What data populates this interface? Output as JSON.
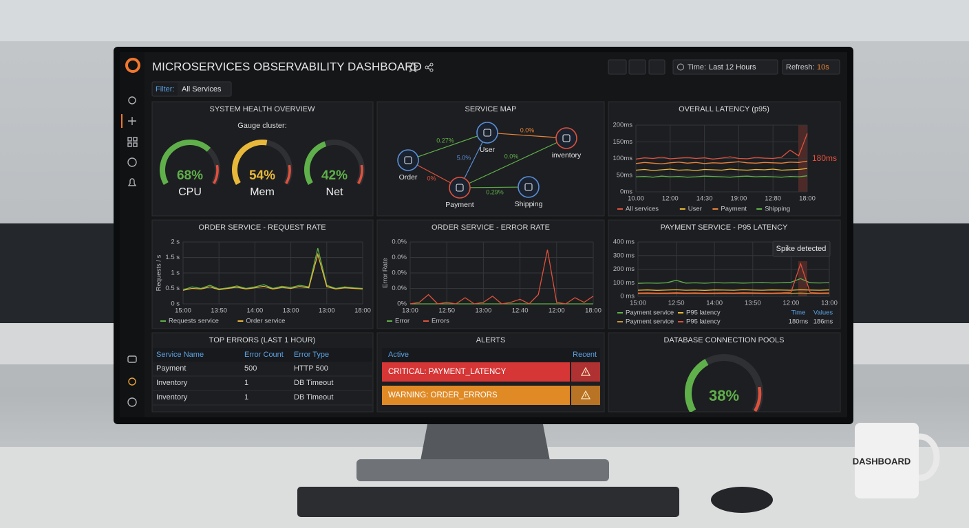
{
  "header": {
    "title": "MICROSERVICES OBSERVABILITY DASHBOARD",
    "time_label": "Time:",
    "time_value": "Last 12 Hours",
    "refresh_label": "Refresh:",
    "refresh_value": "10s"
  },
  "filter": {
    "label": "Filter:",
    "value": "All Services"
  },
  "health": {
    "title": "SYSTEM HEALTH OVERVIEW",
    "subtitle": "Gauge cluster:",
    "labels": [
      "CPU",
      "Mem",
      "Net"
    ],
    "values": [
      68,
      54,
      42
    ],
    "value_labels": [
      "68%",
      "54%",
      "42%"
    ],
    "colors": [
      "#5fb04a",
      "#e8b83a",
      "#5fb04a"
    ]
  },
  "service_map": {
    "title": "SERVICE MAP",
    "nodes": [
      {
        "label": "Order",
        "color": "#5b8fd6"
      },
      {
        "label": "User",
        "color": "#5b8fd6"
      },
      {
        "label": "inventory",
        "color": "#e0513c"
      },
      {
        "label": "Payment",
        "color": "#e0513c"
      },
      {
        "label": "Shipping",
        "color": "#5b8fd6"
      }
    ],
    "edges": [
      {
        "label": "0.27%",
        "color": "#5fb04a"
      },
      {
        "label": "0.0%",
        "color": "#e8843a"
      },
      {
        "label": "5.0%",
        "color": "#5b8fd6"
      },
      {
        "label": "0.0%",
        "color": "#5fb04a"
      },
      {
        "label": "0%",
        "color": "#e0513c"
      },
      {
        "label": "0.29%",
        "color": "#5fb04a"
      }
    ]
  },
  "chart_data": [
    {
      "type": "line",
      "title": "OVERALL LATENCY (p95)",
      "annotation": "180ms",
      "categories": [
        "10.00",
        null,
        null,
        null,
        "12:00",
        null,
        null,
        null,
        "14:30",
        null,
        null,
        null,
        "19:00",
        null,
        null,
        null,
        "12:80",
        null,
        null,
        null,
        "18:00"
      ],
      "ylim": [
        0,
        200
      ],
      "yticks": [
        {
          "value": 0,
          "label": "0ms"
        },
        {
          "value": 50,
          "label": "50ms"
        },
        {
          "value": 100,
          "label": "100ms"
        },
        {
          "value": 150,
          "label": "150ms"
        },
        {
          "value": 200,
          "label": "200ms"
        }
      ],
      "grid": true,
      "series": [
        {
          "name": "All services",
          "color": "#e0513c",
          "values": [
            98,
            102,
            100,
            104,
            99,
            101,
            103,
            100,
            102,
            98,
            101,
            105,
            100,
            99,
            103,
            101,
            100,
            104,
            125,
            108,
            175
          ]
        },
        {
          "name": "User",
          "color": "#e8b83a",
          "values": [
            65,
            67,
            64,
            66,
            68,
            65,
            66,
            64,
            67,
            66,
            65,
            68,
            66,
            65,
            67,
            66,
            68,
            65,
            66,
            67,
            70
          ]
        },
        {
          "name": "Payment",
          "color": "#e8843a",
          "values": [
            85,
            88,
            86,
            84,
            87,
            89,
            86,
            88,
            85,
            87,
            86,
            88,
            90,
            87,
            86,
            88,
            87,
            86,
            89,
            88,
            92
          ]
        },
        {
          "name": "Shipping",
          "color": "#5fb04a",
          "values": [
            45,
            46,
            44,
            47,
            45,
            46,
            44,
            45,
            47,
            46,
            45,
            44,
            46,
            47,
            45,
            46,
            45,
            44,
            46,
            45,
            48
          ]
        }
      ]
    },
    {
      "type": "line",
      "title": "ORDER SERVICE - REQUEST RATE",
      "ylabel": "Requests / s",
      "categories": [
        "15:00",
        null,
        null,
        null,
        "13:50",
        null,
        null,
        null,
        "14:00",
        null,
        null,
        null,
        "13:00",
        null,
        null,
        null,
        "13:00",
        null,
        null,
        null,
        "18:00"
      ],
      "ylim": [
        0,
        2
      ],
      "yticks": [
        {
          "value": 0,
          "label": "0 s"
        },
        {
          "value": 0.5,
          "label": "0.5 s"
        },
        {
          "value": 1,
          "label": "1 s"
        },
        {
          "value": 1.5,
          "label": "1.5 s"
        },
        {
          "value": 2,
          "label": "2 s"
        }
      ],
      "grid": true,
      "series": [
        {
          "name": "Requests service",
          "color": "#5fb04a",
          "values": [
            0.45,
            0.55,
            0.5,
            0.6,
            0.48,
            0.52,
            0.58,
            0.5,
            0.55,
            0.62,
            0.5,
            0.57,
            0.53,
            0.6,
            0.55,
            1.8,
            0.6,
            0.5,
            0.55,
            0.52,
            0.5
          ]
        },
        {
          "name": "Order service",
          "color": "#e8b83a",
          "values": [
            0.44,
            0.5,
            0.48,
            0.55,
            0.46,
            0.5,
            0.54,
            0.48,
            0.52,
            0.57,
            0.48,
            0.53,
            0.5,
            0.56,
            0.52,
            1.6,
            0.56,
            0.48,
            0.52,
            0.5,
            0.48
          ]
        }
      ]
    },
    {
      "type": "line",
      "title": "ORDER SERVICE - ERROR RATE",
      "ylabel": "Error Rate",
      "categories": [
        "13:00",
        null,
        null,
        null,
        "12:50",
        null,
        null,
        null,
        "13:00",
        null,
        null,
        null,
        "12:40",
        null,
        null,
        null,
        "12:00",
        null,
        null,
        null,
        "18:00"
      ],
      "ylim": [
        0,
        0.04
      ],
      "yticks": [
        {
          "value": 0,
          "label": "0%"
        },
        {
          "value": 0.01,
          "label": "0.0%"
        },
        {
          "value": 0.02,
          "label": "0.0%"
        },
        {
          "value": 0.03,
          "label": "0.0%"
        },
        {
          "value": 0.04,
          "label": "0.0%"
        }
      ],
      "grid": true,
      "series": [
        {
          "name": "Error",
          "color": "#5fb04a",
          "values": [
            0,
            0,
            0,
            0,
            0,
            0,
            0,
            0,
            0,
            0,
            0,
            0,
            0,
            0,
            0,
            0,
            0,
            0,
            0,
            0,
            0
          ]
        },
        {
          "name": "Errors",
          "color": "#e0513c",
          "values": [
            0,
            0.001,
            0.006,
            0,
            0.001,
            0,
            0.004,
            0,
            0.001,
            0.005,
            0,
            0.001,
            0.003,
            0,
            0.006,
            0.035,
            0.001,
            0,
            0.004,
            0.001,
            0.005
          ]
        }
      ]
    },
    {
      "type": "line",
      "title": "PAYMENT SERVICE - P95 LATENCY",
      "annotation": "Spike detected",
      "categories": [
        "15:00",
        null,
        null,
        null,
        "12:50",
        null,
        null,
        null,
        "14:00",
        null,
        null,
        null,
        "13:50",
        null,
        null,
        null,
        "12:00",
        null,
        null,
        null,
        "13:00"
      ],
      "ylim": [
        0,
        400
      ],
      "yticks": [
        {
          "value": 0,
          "label": "0 ms"
        },
        {
          "value": 100,
          "label": "100 ms"
        },
        {
          "value": 200,
          "label": "200 ms"
        },
        {
          "value": 300,
          "label": "300 ms"
        },
        {
          "value": 400,
          "label": "400 ms"
        }
      ],
      "grid": true,
      "series": [
        {
          "name": "Payment service",
          "color": "#5fb04a",
          "values": [
            95,
            98,
            96,
            100,
            118,
            97,
            99,
            96,
            101,
            98,
            100,
            97,
            99,
            102,
            98,
            100,
            104,
            130,
            100,
            98,
            101
          ]
        },
        {
          "name": "P95 latency",
          "color": "#e8b83a",
          "values": [
            45,
            47,
            44,
            46,
            48,
            45,
            46,
            44,
            47,
            46,
            45,
            48,
            46,
            45,
            47,
            46,
            45,
            48,
            46,
            45,
            47
          ]
        },
        {
          "name": "Payment service",
          "color": "#c99a36",
          "values": [
            20,
            21,
            19,
            20,
            22,
            20,
            21,
            19,
            20,
            21,
            20,
            22,
            21,
            20,
            19,
            21,
            22,
            24,
            21,
            20,
            21
          ]
        },
        {
          "name": "P95 latency",
          "color": "#e0513c",
          "values": [
            25,
            26,
            24,
            25,
            27,
            25,
            26,
            24,
            25,
            26,
            25,
            27,
            26,
            25,
            24,
            26,
            30,
            240,
            28,
            25,
            26
          ]
        }
      ],
      "legend_table": {
        "headers": [
          "Time",
          "Values"
        ],
        "values": [
          "180ms",
          "186ms"
        ]
      }
    }
  ],
  "top_errors": {
    "title": "TOP ERRORS (LAST 1 HOUR)",
    "columns": [
      "Service Name",
      "Error Count",
      "Error Type"
    ],
    "rows": [
      [
        "Payment",
        500,
        "HTTP 500"
      ],
      [
        "Inventory",
        1,
        "DB Timeout"
      ],
      [
        "Inventory",
        1,
        "DB Timeout"
      ]
    ]
  },
  "alerts": {
    "title": "ALERTS",
    "columns": [
      "Active",
      "Recent"
    ],
    "items": [
      {
        "text": "CRITICAL: PAYMENT_LATENCY",
        "color": "#d63636"
      },
      {
        "text": "WARNING: ORDER_ERRORS",
        "color": "#e08a26"
      }
    ]
  },
  "db_pool": {
    "title": "DATABASE CONNECTION POOLS",
    "value": 38,
    "value_label": "38%",
    "color": "#5fb04a"
  },
  "mug": {
    "text": "DASHBOARD"
  }
}
